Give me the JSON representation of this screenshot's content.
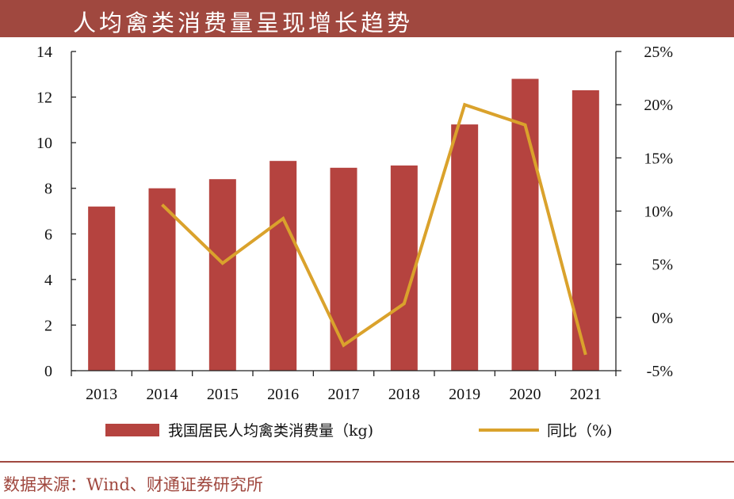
{
  "header": {
    "title": "人均禽类消费量呈现增长趋势"
  },
  "footer": {
    "source": "数据来源：Wind、财通证券研究所"
  },
  "colors": {
    "bar": "#b5433f",
    "line": "#daa22c",
    "title_bg": "#a0483f",
    "source_text": "#a0483f"
  },
  "chart_data": {
    "type": "bar",
    "title": "人均禽类消费量呈现增长趋势",
    "categories": [
      "2013",
      "2014",
      "2015",
      "2016",
      "2017",
      "2018",
      "2019",
      "2020",
      "2021"
    ],
    "series": [
      {
        "name": "我国居民人均禽类消费量（kg)",
        "type": "bar",
        "axis": "left",
        "values": [
          7.2,
          8.0,
          8.4,
          9.2,
          8.9,
          9.0,
          10.8,
          12.8,
          12.3
        ]
      },
      {
        "name": "同比（%)",
        "type": "line",
        "axis": "right",
        "values": [
          null,
          10.6,
          5.1,
          9.3,
          -2.6,
          1.3,
          20.0,
          18.1,
          -3.5
        ]
      }
    ],
    "y_left": {
      "ylim": [
        0,
        14
      ],
      "ticks": [
        "0",
        "2",
        "4",
        "6",
        "8",
        "10",
        "12",
        "14"
      ]
    },
    "y_right": {
      "ylim": [
        -5,
        25
      ],
      "ticks": [
        "-5%",
        "0%",
        "5%",
        "10%",
        "15%",
        "20%",
        "25%"
      ]
    },
    "legend": {
      "position": "bottom"
    },
    "grid": false
  }
}
